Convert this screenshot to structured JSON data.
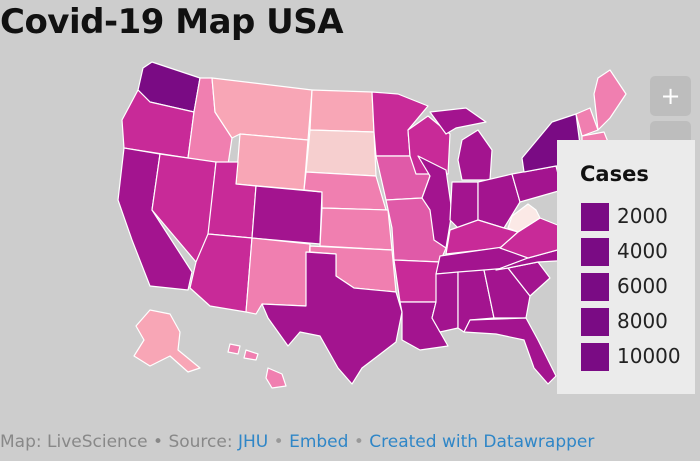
{
  "title": "Covid-19 Map USA",
  "zoom": {
    "in_label": "+",
    "out_label": "−"
  },
  "legend": {
    "title": "Cases",
    "items": [
      {
        "label": "2000",
        "color": "#7a0b84"
      },
      {
        "label": "4000",
        "color": "#7a0b84"
      },
      {
        "label": "6000",
        "color": "#7a0b84"
      },
      {
        "label": "8000",
        "color": "#7a0b84"
      },
      {
        "label": "10000",
        "color": "#7a0b84"
      }
    ]
  },
  "footer": {
    "prefix": "Map: LiveScience • Source: ",
    "source_link": "JHU",
    "sep1": " • ",
    "embed_link": "Embed",
    "sep2": " • ",
    "created_link": "Created with Datawrapper"
  },
  "colors": {
    "background": "#cdcdcd",
    "lightest": "#f6cfcf",
    "light": "#f8a6b6",
    "pink": "#f07fb0",
    "mid": "#e05aa8",
    "magenta": "#c82a98",
    "dark": "#a3148f",
    "darkest": "#7a0b84",
    "white_state": "#fbe9e6"
  }
}
